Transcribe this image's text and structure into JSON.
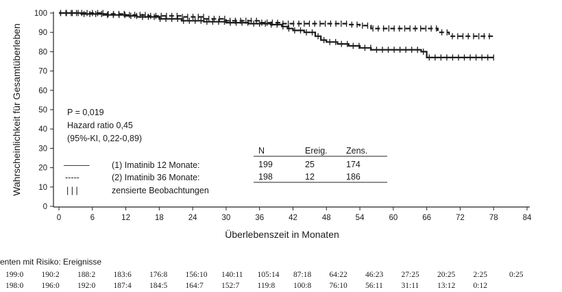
{
  "chart_data": {
    "type": "line",
    "subtype": "kaplan-meier",
    "title": "",
    "xlabel": "Überlebenszeit in Monaten",
    "ylabel": "Wahrscheinlichkeit für Gesamtüberleben",
    "xlim": [
      0,
      84
    ],
    "ylim": [
      0,
      100
    ],
    "x_ticks": [
      0,
      6,
      12,
      18,
      24,
      30,
      36,
      42,
      48,
      54,
      60,
      66,
      72,
      78,
      84
    ],
    "y_ticks": [
      0,
      10,
      20,
      30,
      40,
      50,
      60,
      70,
      80,
      90,
      100
    ],
    "grid": false,
    "series": [
      {
        "name": "(1) Imatinib 12 Monate:",
        "line_style": "solid",
        "line_sample": "———",
        "x": [
          0,
          4,
          8,
          12,
          14,
          18,
          22,
          26,
          30,
          34,
          38,
          40,
          41,
          42,
          44,
          46,
          47,
          48,
          50,
          52,
          54,
          56,
          58,
          60,
          64,
          65,
          66,
          78
        ],
        "y": [
          100,
          99.5,
          99,
          98.5,
          98,
          97,
          96,
          95.5,
          95,
          94.5,
          94,
          93,
          92,
          91,
          90,
          88,
          86,
          85,
          84,
          83,
          82,
          81,
          81,
          81,
          81,
          80,
          77,
          77
        ]
      },
      {
        "name": "(2) Imatinib 36 Monate:",
        "line_style": "dashed",
        "line_sample": "-----",
        "x": [
          0,
          8,
          12,
          16,
          22,
          26,
          30,
          36,
          40,
          44,
          48,
          52,
          54,
          56,
          58,
          60,
          66,
          68,
          70,
          72,
          78
        ],
        "y": [
          100,
          99.5,
          99,
          98.5,
          98,
          97,
          96,
          95,
          94.5,
          94.5,
          94.5,
          94,
          93.5,
          92,
          92,
          92,
          92,
          90,
          88,
          88,
          88
        ]
      }
    ],
    "annotations": [
      "P = 0,019",
      "Hazard ratio 0,45",
      "(95%-KI, 0,22-0,89)"
    ],
    "legend_placement": "bottom-left inside plot",
    "censor_symbol": "| | |",
    "censor_label": "zensierte Beobachtungen",
    "summary_table": {
      "headers": [
        "N",
        "Ereig.",
        "Zens."
      ],
      "rows": [
        [
          "199",
          "25",
          "174"
        ],
        [
          "198",
          "12",
          "186"
        ]
      ]
    },
    "risk_table": {
      "title": "enten mit Risiko: Ereignisse",
      "rows": [
        [
          "199:0",
          "190:2",
          "188:2",
          "183:6",
          "176:8",
          "156:10",
          "140:11",
          "105:14",
          "87:18",
          "64:22",
          "46:23",
          "27:25",
          "20:25",
          "2:25",
          "0:25"
        ],
        [
          "198:0",
          "196:0",
          "192:0",
          "187:4",
          "184:5",
          "164:7",
          "152:7",
          "119:8",
          "100:8",
          "76:10",
          "56:11",
          "31:11",
          "13:12",
          "0:12"
        ]
      ]
    }
  }
}
